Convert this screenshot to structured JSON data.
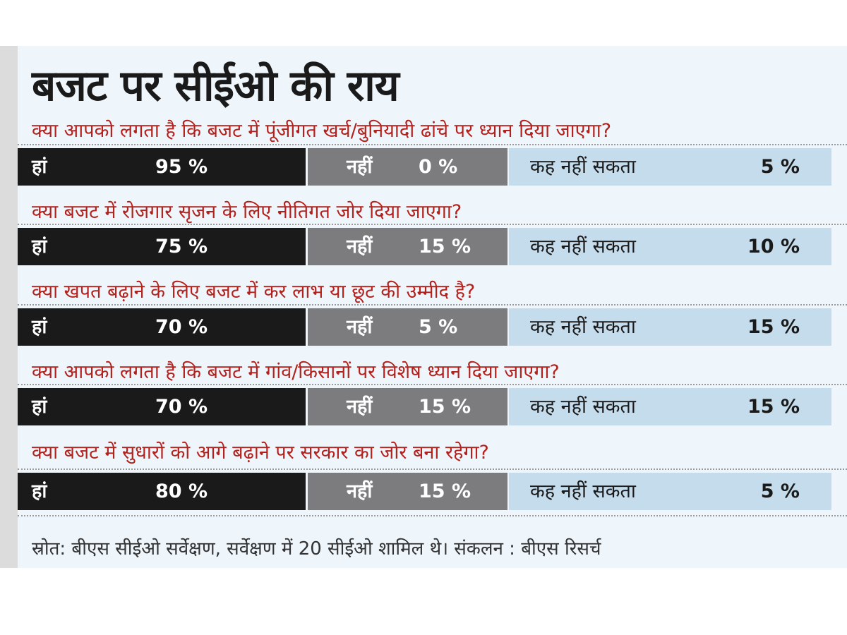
{
  "title": "बजट पर सीईओ की राय",
  "labels": {
    "yes": "हां",
    "no": "नहीं",
    "cant_say": "कह नहीं सकता"
  },
  "colors": {
    "yes": "#1b1a1a",
    "no": "#7c7c7e",
    "cant_say": "#c5dcec",
    "question": "#b3211c"
  },
  "chart_data": {
    "type": "table",
    "title": "बजट पर सीईओ की राय",
    "columns": [
      "हां",
      "नहीं",
      "कह नहीं सकता"
    ],
    "rows": [
      {
        "question": "क्या आपको लगता है कि बजट में पूंजीगत खर्च/बुनियादी ढांचे पर ध्यान दिया जाएगा?",
        "yes": "95 %",
        "no": "0 %",
        "cant_say": "5 %"
      },
      {
        "question": "क्या बजट में रोजगार सृजन के लिए नीतिगत जोर दिया जाएगा?",
        "yes": "75 %",
        "no": "15 %",
        "cant_say": "10 %"
      },
      {
        "question": "क्या खपत बढ़ाने के लिए बजट में कर लाभ या छूट की उम्मीद है?",
        "yes": "70  %",
        "no": "5 %",
        "cant_say": "15 %"
      },
      {
        "question": "क्या आपको लगता है कि बजट में गांव/किसानों पर विशेष ध्यान दिया जाएगा?",
        "yes": "70 %",
        "no": "15 %",
        "cant_say": "15 %"
      },
      {
        "question": "क्या बजट में सुधारों को आगे बढ़ाने पर सरकार का जोर बना रहेगा?",
        "yes": "80 %",
        "no": "15 %",
        "cant_say": "5 %"
      }
    ]
  },
  "footer": "स्रोत: बीएस सीईओ सर्वेक्षण, सर्वेक्षण में 20 सीईओ शामिल थे। संकलन : बीएस रिसर्च"
}
